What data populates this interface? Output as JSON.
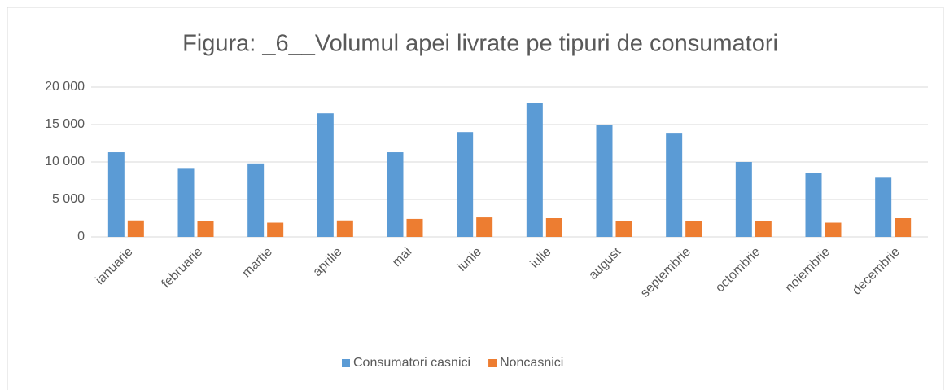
{
  "chart_data": {
    "type": "bar",
    "title": "Figura: _6__Volumul apei livrate pe tipuri de consumatori",
    "categories": [
      "ianuarie",
      "februarie",
      "martie",
      "aprilie",
      "mai",
      "iunie",
      "iulie",
      "august",
      "septembrie",
      "octombrie",
      "noiembrie",
      "decembrie"
    ],
    "series": [
      {
        "name": "Consumatori casnici",
        "color": "#5b9bd5",
        "values": [
          11300,
          9200,
          9800,
          16500,
          11300,
          14000,
          17900,
          14900,
          13900,
          10000,
          8500,
          7900
        ]
      },
      {
        "name": "Noncasnici",
        "color": "#ed7d31",
        "values": [
          2200,
          2100,
          1900,
          2200,
          2400,
          2600,
          2500,
          2100,
          2100,
          2100,
          1900,
          2500
        ]
      }
    ],
    "ylim": [
      0,
      20000
    ],
    "yticks": [
      0,
      {
        "value": 5000,
        "label": "5 000"
      },
      {
        "value": 10000,
        "label": "10 000"
      },
      {
        "value": 15000,
        "label": "15 000"
      },
      {
        "value": 20000,
        "label": "20 000"
      }
    ],
    "grid": true,
    "legend": "bottom"
  }
}
